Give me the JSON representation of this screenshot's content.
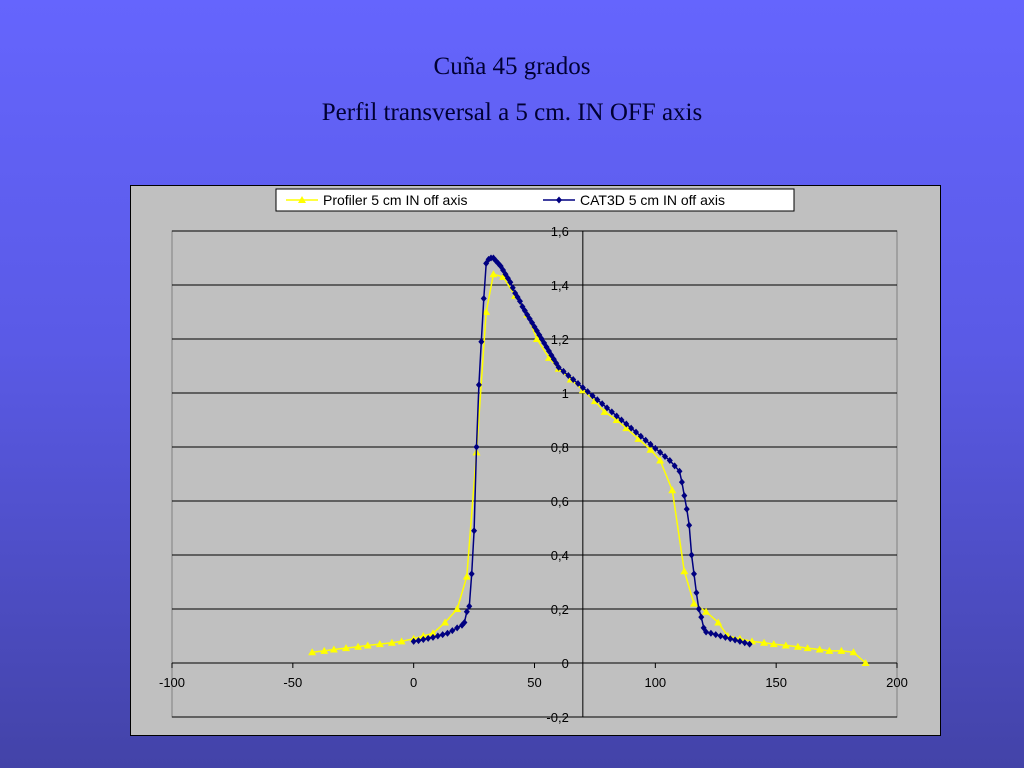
{
  "slide": {
    "title_line1": "Cuña 45 grados",
    "title_line2": "Perfil transversal  a 5 cm. IN OFF axis"
  },
  "colors": {
    "plot_background": "#c0c0c0",
    "gridline": "#000000",
    "profiler": "#ffff00",
    "cat3d": "#000080"
  },
  "chart_data": {
    "type": "scatter",
    "xlim": [
      -100,
      200
    ],
    "ylim": [
      -0.2,
      1.6
    ],
    "x_ticks": [
      -100,
      -50,
      0,
      50,
      100,
      150,
      200
    ],
    "x_tick_labels": [
      "-100",
      "-50",
      "0",
      "50",
      "100",
      "150",
      "200"
    ],
    "y_ticks": [
      -0.2,
      0,
      0.2,
      0.4,
      0.6,
      0.8,
      1,
      1.2,
      1.4,
      1.6
    ],
    "y_tick_labels": [
      "-0,2",
      "0",
      "0,2",
      "0,4",
      "0,6",
      "0,8",
      "1",
      "1,2",
      "1,4",
      "1,6"
    ],
    "grid": "horizontal",
    "legend_position": "top",
    "series": [
      {
        "name": "Profiler 5 cm IN off axis",
        "marker": "triangle",
        "color": "#ffff00",
        "points": [
          [
            -42,
            0.04
          ],
          [
            -37,
            0.045
          ],
          [
            -33,
            0.05
          ],
          [
            -28,
            0.055
          ],
          [
            -23,
            0.06
          ],
          [
            -19,
            0.065
          ],
          [
            -14,
            0.07
          ],
          [
            -9,
            0.075
          ],
          [
            -5,
            0.08
          ],
          [
            0,
            0.09
          ],
          [
            4,
            0.1
          ],
          [
            8,
            0.11
          ],
          [
            13,
            0.15
          ],
          [
            18,
            0.2
          ],
          [
            22,
            0.32
          ],
          [
            26,
            0.78
          ],
          [
            30,
            1.3
          ],
          [
            33,
            1.44
          ],
          [
            37,
            1.43
          ],
          [
            42,
            1.36
          ],
          [
            47,
            1.29
          ],
          [
            51,
            1.2
          ],
          [
            56,
            1.13
          ],
          [
            60,
            1.09
          ],
          [
            65,
            1.05
          ],
          [
            70,
            1.01
          ],
          [
            75,
            0.97
          ],
          [
            79,
            0.93
          ],
          [
            84,
            0.9
          ],
          [
            88,
            0.87
          ],
          [
            93,
            0.83
          ],
          [
            98,
            0.79
          ],
          [
            102,
            0.75
          ],
          [
            107,
            0.64
          ],
          [
            112,
            0.34
          ],
          [
            116,
            0.22
          ],
          [
            121,
            0.19
          ],
          [
            126,
            0.15
          ],
          [
            130,
            0.1
          ],
          [
            135,
            0.09
          ],
          [
            140,
            0.08
          ],
          [
            145,
            0.075
          ],
          [
            149,
            0.07
          ],
          [
            154,
            0.065
          ],
          [
            159,
            0.06
          ],
          [
            163,
            0.055
          ],
          [
            168,
            0.05
          ],
          [
            172,
            0.045
          ],
          [
            177,
            0.045
          ],
          [
            182,
            0.04
          ],
          [
            187,
            0.0
          ]
        ]
      },
      {
        "name": "CAT3D 5 cm IN off axis",
        "marker": "diamond",
        "color": "#000080",
        "points": [
          [
            0,
            0.08
          ],
          [
            2,
            0.083
          ],
          [
            4,
            0.087
          ],
          [
            6,
            0.091
          ],
          [
            8,
            0.095
          ],
          [
            10,
            0.1
          ],
          [
            12,
            0.105
          ],
          [
            14,
            0.11
          ],
          [
            16,
            0.12
          ],
          [
            18,
            0.13
          ],
          [
            20,
            0.14
          ],
          [
            21,
            0.15
          ],
          [
            22,
            0.19
          ],
          [
            23,
            0.21
          ],
          [
            24,
            0.33
          ],
          [
            25,
            0.49
          ],
          [
            26,
            0.8
          ],
          [
            27,
            1.03
          ],
          [
            28,
            1.19
          ],
          [
            29,
            1.35
          ],
          [
            30,
            1.48
          ],
          [
            31,
            1.495
          ],
          [
            32,
            1.5
          ],
          [
            33,
            1.5
          ],
          [
            34,
            1.49
          ],
          [
            35,
            1.48
          ],
          [
            36,
            1.47
          ],
          [
            37,
            1.455
          ],
          [
            38,
            1.44
          ],
          [
            39,
            1.425
          ],
          [
            40,
            1.41
          ],
          [
            41,
            1.39
          ],
          [
            42,
            1.37
          ],
          [
            43,
            1.355
          ],
          [
            44,
            1.34
          ],
          [
            45,
            1.32
          ],
          [
            46,
            1.305
          ],
          [
            47,
            1.29
          ],
          [
            48,
            1.275
          ],
          [
            49,
            1.26
          ],
          [
            50,
            1.245
          ],
          [
            51,
            1.23
          ],
          [
            52,
            1.215
          ],
          [
            53,
            1.2
          ],
          [
            54,
            1.185
          ],
          [
            55,
            1.17
          ],
          [
            56,
            1.155
          ],
          [
            57,
            1.14
          ],
          [
            58,
            1.125
          ],
          [
            59,
            1.11
          ],
          [
            60,
            1.095
          ],
          [
            62,
            1.08
          ],
          [
            64,
            1.065
          ],
          [
            66,
            1.05
          ],
          [
            68,
            1.035
          ],
          [
            70,
            1.02
          ],
          [
            72,
            1.005
          ],
          [
            74,
            0.99
          ],
          [
            76,
            0.975
          ],
          [
            78,
            0.96
          ],
          [
            80,
            0.945
          ],
          [
            82,
            0.93
          ],
          [
            84,
            0.915
          ],
          [
            86,
            0.9
          ],
          [
            88,
            0.885
          ],
          [
            90,
            0.87
          ],
          [
            92,
            0.855
          ],
          [
            94,
            0.84
          ],
          [
            96,
            0.825
          ],
          [
            98,
            0.81
          ],
          [
            100,
            0.795
          ],
          [
            102,
            0.78
          ],
          [
            104,
            0.765
          ],
          [
            106,
            0.75
          ],
          [
            108,
            0.73
          ],
          [
            110,
            0.71
          ],
          [
            111,
            0.67
          ],
          [
            112,
            0.62
          ],
          [
            113,
            0.57
          ],
          [
            114,
            0.51
          ],
          [
            115,
            0.4
          ],
          [
            116,
            0.33
          ],
          [
            117,
            0.26
          ],
          [
            118,
            0.2
          ],
          [
            119,
            0.17
          ],
          [
            120,
            0.13
          ],
          [
            121,
            0.115
          ],
          [
            123,
            0.11
          ],
          [
            125,
            0.105
          ],
          [
            127,
            0.1
          ],
          [
            129,
            0.095
          ],
          [
            131,
            0.09
          ],
          [
            133,
            0.085
          ],
          [
            135,
            0.08
          ],
          [
            137,
            0.075
          ],
          [
            139,
            0.07
          ]
        ]
      }
    ]
  }
}
